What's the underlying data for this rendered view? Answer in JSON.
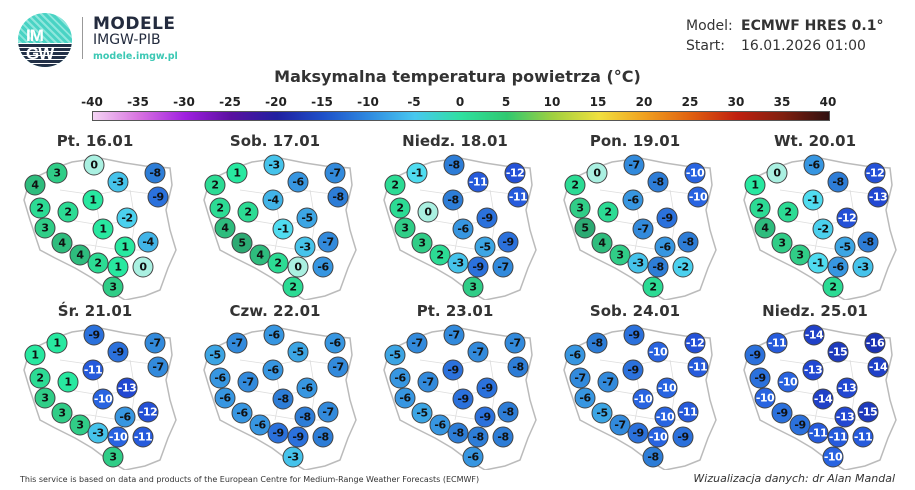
{
  "logo": {
    "mark_line1": "IM",
    "mark_line2": "GW",
    "brand": "MODELE",
    "sub": "IMGW-PIB",
    "url": "modele.imgw.pl"
  },
  "header": {
    "model_label": "Model:",
    "model_value": "ECMWF HRES 0.1°",
    "start_label": "Start:",
    "start_value": "16.01.2026 01:00"
  },
  "title": "Maksymalna temperatura powietrza (°C)",
  "colorbar": {
    "ticks": [
      "-40",
      "-35",
      "-30",
      "-25",
      "-20",
      "-15",
      "-10",
      "-5",
      "0",
      "5",
      "10",
      "15",
      "20",
      "25",
      "30",
      "35",
      "40"
    ],
    "colors": [
      "#f4d4f4",
      "#d873e0",
      "#a020e0",
      "#5a10a0",
      "#2020a0",
      "#1e50c8",
      "#2f8ae0",
      "#48c8f0",
      "#30e0a0",
      "#30c870",
      "#a0d040",
      "#f0e040",
      "#f0a020",
      "#e06010",
      "#c02010",
      "#802010",
      "#301010"
    ]
  },
  "days": [
    {
      "label": "Pt. 16.01",
      "values": [
        3,
        0,
        4,
        -3,
        -8,
        -9,
        1,
        2,
        2,
        -2,
        1,
        3,
        4,
        -4,
        1,
        4,
        2,
        1,
        0,
        3
      ]
    },
    {
      "label": "Sob. 17.01",
      "values": [
        1,
        -3,
        2,
        -6,
        -7,
        -8,
        -4,
        2,
        2,
        -5,
        -1,
        4,
        5,
        -7,
        -3,
        4,
        2,
        0,
        -6,
        2
      ]
    },
    {
      "label": "Niedz. 18.01",
      "values": [
        -1,
        -8,
        2,
        -11,
        -12,
        -11,
        -8,
        2,
        0,
        -9,
        -6,
        3,
        3,
        -9,
        -5,
        2,
        -3,
        -9,
        -7,
        3
      ]
    },
    {
      "label": "Pon. 19.01",
      "values": [
        0,
        -7,
        2,
        -8,
        -10,
        -10,
        -6,
        3,
        2,
        -9,
        -7,
        5,
        4,
        -8,
        -6,
        3,
        -3,
        -8,
        -2,
        2
      ]
    },
    {
      "label": "Wt. 20.01",
      "values": [
        0,
        -6,
        1,
        -8,
        -12,
        -13,
        -1,
        2,
        2,
        -12,
        -2,
        4,
        3,
        -8,
        -5,
        3,
        -1,
        -6,
        -3,
        2
      ]
    },
    {
      "label": "Śr. 21.01",
      "values": [
        1,
        -9,
        1,
        -9,
        -7,
        -7,
        -11,
        2,
        1,
        -13,
        -10,
        3,
        3,
        -12,
        -6,
        3,
        -3,
        -10,
        -11,
        3
      ]
    },
    {
      "label": "Czw. 22.01",
      "values": [
        -7,
        -6,
        -5,
        -5,
        -6,
        -7,
        -6,
        -6,
        -7,
        -6,
        -8,
        -6,
        -6,
        -7,
        -8,
        -6,
        -9,
        -9,
        -8,
        -3
      ]
    },
    {
      "label": "Pt. 23.01",
      "values": [
        -7,
        -7,
        -5,
        -7,
        -7,
        -8,
        -9,
        -6,
        -7,
        -9,
        -9,
        -6,
        -5,
        -8,
        -9,
        -6,
        -8,
        -8,
        -8,
        -6
      ]
    },
    {
      "label": "Sob. 24.01",
      "values": [
        -8,
        -9,
        -6,
        -10,
        -12,
        -11,
        -9,
        -7,
        -7,
        -10,
        -10,
        -6,
        -5,
        -11,
        -10,
        -7,
        -9,
        -10,
        -9,
        -8
      ]
    },
    {
      "label": "Niedz. 25.01",
      "values": [
        -11,
        -14,
        -9,
        -15,
        -16,
        -14,
        -13,
        -9,
        -10,
        -13,
        -14,
        -10,
        -9,
        -15,
        -13,
        -9,
        -11,
        -11,
        -11,
        -10
      ]
    }
  ],
  "footer": {
    "left": "This service is based on data and products of the European Centre for Medium-Range Weather Forecasts (ECMWF)",
    "right": "Wizualizacja danych: dr Alan Mandal"
  }
}
